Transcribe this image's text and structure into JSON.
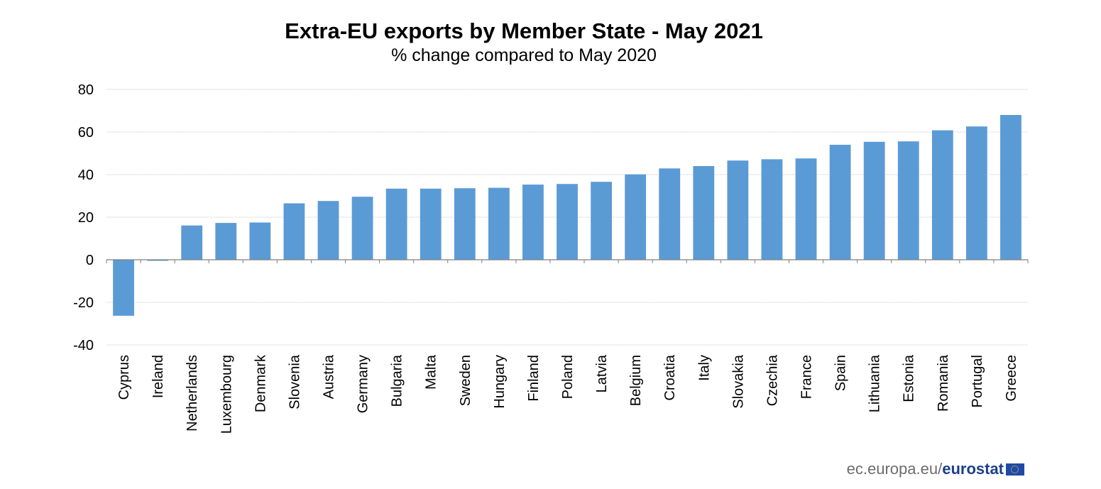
{
  "chart_data": {
    "type": "bar",
    "title": "Extra-EU exports by Member State - May 2021",
    "subtitle": "% change compared to May 2020",
    "xlabel": "",
    "ylabel": "",
    "ylim": [
      -40,
      80
    ],
    "yticks": [
      80,
      60,
      40,
      20,
      0,
      -20,
      -40
    ],
    "grid": true,
    "categories": [
      "Cyprus",
      "Ireland",
      "Netherlands",
      "Luxembourg",
      "Denmark",
      "Slovenia",
      "Austria",
      "Germany",
      "Bulgaria",
      "Malta",
      "Sweden",
      "Hungary",
      "Finland",
      "Poland",
      "Latvia",
      "Belgium",
      "Croatia",
      "Italy",
      "Slovakia",
      "Czechia",
      "France",
      "Spain",
      "Lithuania",
      "Estonia",
      "Romania",
      "Portugal",
      "Greece"
    ],
    "values": [
      -26.3,
      -0.5,
      16.1,
      17.3,
      17.5,
      26.5,
      27.6,
      29.6,
      33.4,
      33.4,
      33.6,
      33.8,
      35.3,
      35.6,
      36.6,
      40.1,
      42.9,
      44.0,
      46.6,
      47.2,
      47.6,
      54.0,
      55.4,
      55.6,
      60.8,
      62.6,
      68.0
    ],
    "bar_color": "#5b9bd5"
  },
  "footer": {
    "site": "ec.europa.eu/",
    "brand": "eurostat"
  }
}
